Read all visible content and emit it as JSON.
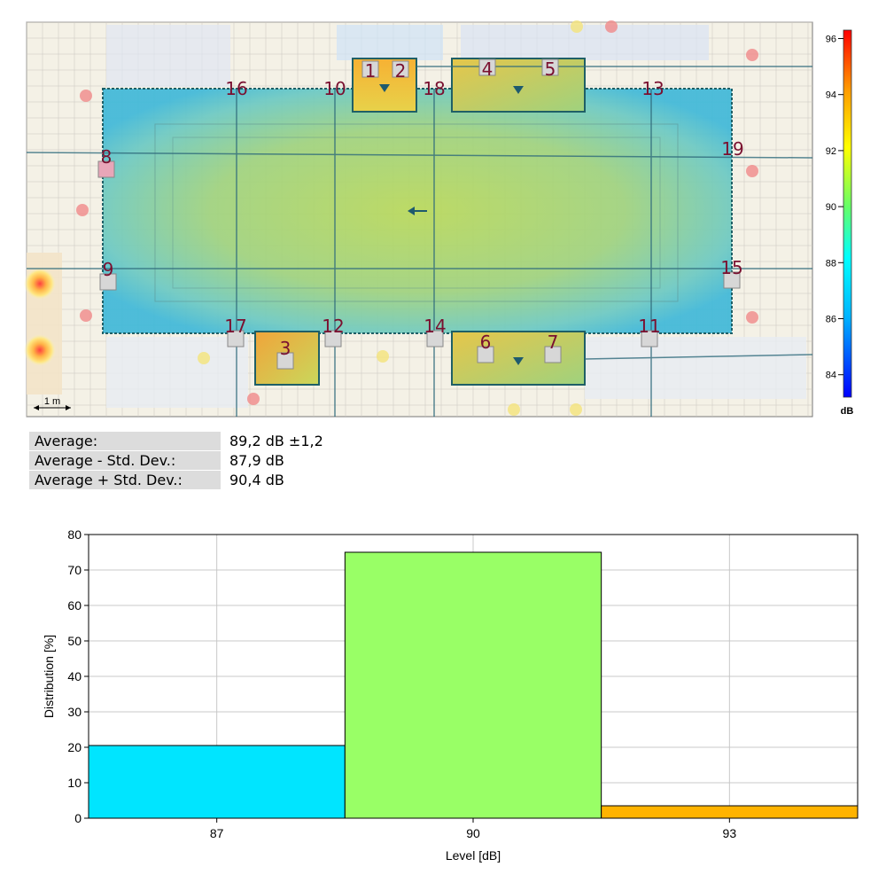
{
  "map": {
    "scale_label": "1 m",
    "colorbar": {
      "unit": "dB",
      "ticks": [
        84,
        86,
        88,
        90,
        92,
        94,
        96
      ],
      "min": 83.2,
      "max": 96.3
    },
    "measurement_points": [
      "1",
      "2",
      "3",
      "4",
      "5",
      "6",
      "7",
      "8",
      "9",
      "10",
      "11",
      "12",
      "13",
      "14",
      "15",
      "16",
      "17",
      "18",
      "19"
    ]
  },
  "stats": [
    {
      "label": "Average:",
      "value": "89,2 dB ±1,2"
    },
    {
      "label": "Average - Std. Dev.:",
      "value": "87,9 dB"
    },
    {
      "label": "Average + Std. Dev.:",
      "value": "90,4 dB"
    }
  ],
  "chart_data": {
    "type": "bar",
    "categories": [
      "87",
      "90",
      "93"
    ],
    "values": [
      20.5,
      75,
      3.5
    ],
    "colors": [
      "#00e5ff",
      "#99ff66",
      "#ffb300"
    ],
    "xlabel": "Level [dB]",
    "ylabel": "Distribution [%]",
    "ylim": [
      0,
      80
    ],
    "yticks": [
      0,
      10,
      20,
      30,
      40,
      50,
      60,
      70,
      80
    ],
    "grid": true
  }
}
